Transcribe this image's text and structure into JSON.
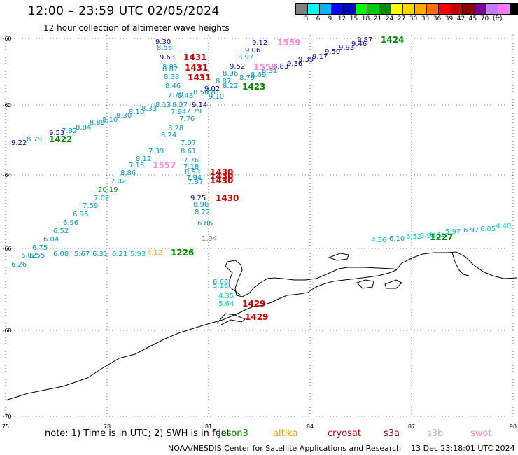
{
  "header": {
    "title": "12:00 – 23:59 UTC 02/05/2024",
    "subtitle": "12 hour collection of altimeter wave heights"
  },
  "scale": {
    "colors": [
      "#808080",
      "#00ffff",
      "#00b4ff",
      "#0000ff",
      "#0000c8",
      "#00ff00",
      "#00cd00",
      "#008c00",
      "#ffff00",
      "#ffd200",
      "#ffaa00",
      "#ff6e00",
      "#ff0000",
      "#c80000",
      "#8c0000",
      "#780096",
      "#c878ff",
      "#ff78ff",
      "#000000"
    ],
    "labels": [
      "3",
      "6",
      "9",
      "12",
      "15",
      "18",
      "21",
      "24",
      "27",
      "30",
      "33",
      "36",
      "39",
      "42",
      "45",
      "70"
    ],
    "unit": "(ft)"
  },
  "axes": {
    "lon_ticks": [
      "75",
      "78",
      "81",
      "84",
      "87",
      "90"
    ],
    "lat_ticks": [
      "-60",
      "-62",
      "-64",
      "-66",
      "-68",
      "-70"
    ]
  },
  "passes": [
    {
      "time": "1431",
      "color": "#cc0000"
    },
    {
      "time": "1431",
      "color": "#cc0000"
    },
    {
      "time": "1431",
      "color": "#cc0000"
    },
    {
      "time": "1559",
      "color": "#ff88dd"
    },
    {
      "time": "1558",
      "color": "#ff88dd"
    },
    {
      "time": "1424",
      "color": "#008800"
    },
    {
      "time": "1423",
      "color": "#008800"
    },
    {
      "time": "1422",
      "color": "#008800"
    },
    {
      "time": "1557",
      "color": "#ff88dd"
    },
    {
      "time": "1430",
      "color": "#cc0000"
    },
    {
      "time": "1430",
      "color": "#cc0000"
    },
    {
      "time": "1430",
      "color": "#cc0000"
    },
    {
      "time": "1430",
      "color": "#cc0000"
    },
    {
      "time": "1226",
      "color": "#008800"
    },
    {
      "time": "1227",
      "color": "#008800"
    },
    {
      "time": "1429",
      "color": "#cc0000"
    },
    {
      "time": "1429",
      "color": "#cc0000"
    }
  ],
  "wave_labels": [
    {
      "text": "9.30",
      "color": "#000099"
    },
    {
      "text": "8.56",
      "color": "#0099cc"
    },
    {
      "text": "9.63",
      "color": "#000099"
    },
    {
      "text": "8.91",
      "color": "#0099cc"
    },
    {
      "text": "8.87",
      "color": "#0099cc"
    },
    {
      "text": "8.38",
      "color": "#0099cc"
    },
    {
      "text": "8.46",
      "color": "#0099cc"
    },
    {
      "text": "7.79",
      "color": "#0099cc"
    },
    {
      "text": "8.48",
      "color": "#0099cc"
    },
    {
      "text": "8.13",
      "color": "#0099cc"
    },
    {
      "text": "8.27",
      "color": "#0099cc"
    },
    {
      "text": "7.79",
      "color": "#0099cc"
    },
    {
      "text": "7.94",
      "color": "#0099cc"
    },
    {
      "text": "7.76",
      "color": "#0099cc"
    },
    {
      "text": "8.28",
      "color": "#0099cc"
    },
    {
      "text": "8.24",
      "color": "#0099cc"
    },
    {
      "text": "7.07",
      "color": "#0099cc"
    },
    {
      "text": "7.39",
      "color": "#0099cc"
    },
    {
      "text": "8.61",
      "color": "#0099cc"
    },
    {
      "text": "8.12",
      "color": "#0099cc"
    },
    {
      "text": "7.76",
      "color": "#0099cc"
    },
    {
      "text": "7.15",
      "color": "#0099cc"
    },
    {
      "text": "7.18",
      "color": "#0099cc"
    },
    {
      "text": "8.86",
      "color": "#0099cc"
    },
    {
      "text": "8.53",
      "color": "#0099cc"
    },
    {
      "text": "7.02",
      "color": "#0099cc"
    },
    {
      "text": "7.94",
      "color": "#0099cc"
    },
    {
      "text": "7.87",
      "color": "#0099cc"
    },
    {
      "text": "20.19",
      "color": "#009900"
    },
    {
      "text": "7.02",
      "color": "#0099cc"
    },
    {
      "text": "7.59",
      "color": "#0099cc"
    },
    {
      "text": "6.96",
      "color": "#0099cc"
    },
    {
      "text": "6.96",
      "color": "#0099cc"
    },
    {
      "text": "6.52",
      "color": "#0099cc"
    },
    {
      "text": "6.04",
      "color": "#0099cc"
    },
    {
      "text": "6.75",
      "color": "#0099cc"
    },
    {
      "text": "6.02",
      "color": "#0099cc"
    },
    {
      "text": "6.55",
      "color": "#0099cc"
    },
    {
      "text": "6.08",
      "color": "#0099cc"
    },
    {
      "text": "5.67",
      "color": "#0099cc"
    },
    {
      "text": "6.31",
      "color": "#0099cc"
    },
    {
      "text": "6.26",
      "color": "#0099cc"
    },
    {
      "text": "6.21",
      "color": "#0099cc"
    },
    {
      "text": "5.93",
      "color": "#00cccc"
    },
    {
      "text": "4.12",
      "color": "#ff9900"
    },
    {
      "text": "9.12",
      "color": "#000099"
    },
    {
      "text": "9.06",
      "color": "#000099"
    },
    {
      "text": "8.97",
      "color": "#0099cc"
    },
    {
      "text": "9.52",
      "color": "#000099"
    },
    {
      "text": "8.96",
      "color": "#0099cc"
    },
    {
      "text": "8.87",
      "color": "#0099cc"
    },
    {
      "text": "8.79",
      "color": "#0099cc"
    },
    {
      "text": "8.69",
      "color": "#0099cc"
    },
    {
      "text": "8.31",
      "color": "#0099cc"
    },
    {
      "text": "8.83",
      "color": "#000099"
    },
    {
      "text": "8.22",
      "color": "#0099cc"
    },
    {
      "text": "9.02",
      "color": "#000099"
    },
    {
      "text": "8.81",
      "color": "#0099cc"
    },
    {
      "text": "9.10",
      "color": "#0099cc"
    },
    {
      "text": "8.59",
      "color": "#0099cc"
    },
    {
      "text": "9.14",
      "color": "#000099"
    },
    {
      "text": "9.36",
      "color": "#000099"
    },
    {
      "text": "9.39",
      "color": "#000099"
    },
    {
      "text": "9.17",
      "color": "#000099"
    },
    {
      "text": "9.50",
      "color": "#000099"
    },
    {
      "text": "9.93",
      "color": "#000099"
    },
    {
      "text": "9.46",
      "color": "#000099"
    },
    {
      "text": "9.87",
      "color": "#000099"
    },
    {
      "text": "8.30",
      "color": "#0099cc"
    },
    {
      "text": "8.10",
      "color": "#0099cc"
    },
    {
      "text": "8.33",
      "color": "#0099cc"
    },
    {
      "text": "8.10",
      "color": "#0099cc"
    },
    {
      "text": "8.89",
      "color": "#0099cc"
    },
    {
      "text": "8.84",
      "color": "#0099cc"
    },
    {
      "text": "7.82",
      "color": "#0099cc"
    },
    {
      "text": "9.53",
      "color": "#000099"
    },
    {
      "text": "8.79",
      "color": "#0099cc"
    },
    {
      "text": "9.22",
      "color": "#000099"
    },
    {
      "text": "9.25",
      "color": "#000099"
    },
    {
      "text": "8.96",
      "color": "#0099cc"
    },
    {
      "text": "8.22",
      "color": "#0099cc"
    },
    {
      "text": "6.86",
      "color": "#0099cc"
    },
    {
      "text": "1.94",
      "color": "#808080"
    },
    {
      "text": "4.56",
      "color": "#00cccc"
    },
    {
      "text": "6.10",
      "color": "#0099cc"
    },
    {
      "text": "6.52",
      "color": "#00cccc"
    },
    {
      "text": "5.94",
      "color": "#00cccc"
    },
    {
      "text": "6.45",
      "color": "#00cccc"
    },
    {
      "text": "5.97",
      "color": "#00cccc"
    },
    {
      "text": "6.97",
      "color": "#0099cc"
    },
    {
      "text": "6.05",
      "color": "#00cccc"
    },
    {
      "text": "4.40",
      "color": "#00cccc"
    },
    {
      "text": "6.66",
      "color": "#0099cc"
    },
    {
      "text": "5.16",
      "color": "#00cccc"
    },
    {
      "text": "4.35",
      "color": "#00cccc"
    },
    {
      "text": "5.64",
      "color": "#00cccc"
    }
  ],
  "note": "note: 1) Time is in UTC; 2) SWH is in feet",
  "satellites": [
    {
      "name": "jason3",
      "color": "#008800"
    },
    {
      "name": "altika",
      "color": "#ff9900"
    },
    {
      "name": "cryosat",
      "color": "#cc0000"
    },
    {
      "name": "s3a",
      "color": "#880000"
    },
    {
      "name": "s3b",
      "color": "#bbaaee"
    },
    {
      "name": "swot",
      "color": "#ff88dd"
    }
  ],
  "footer": {
    "credit": "NOAA/NESDIS Center for Satellite Applications and Research",
    "date": "13 Dec 23:18:01 UTC 2024"
  }
}
